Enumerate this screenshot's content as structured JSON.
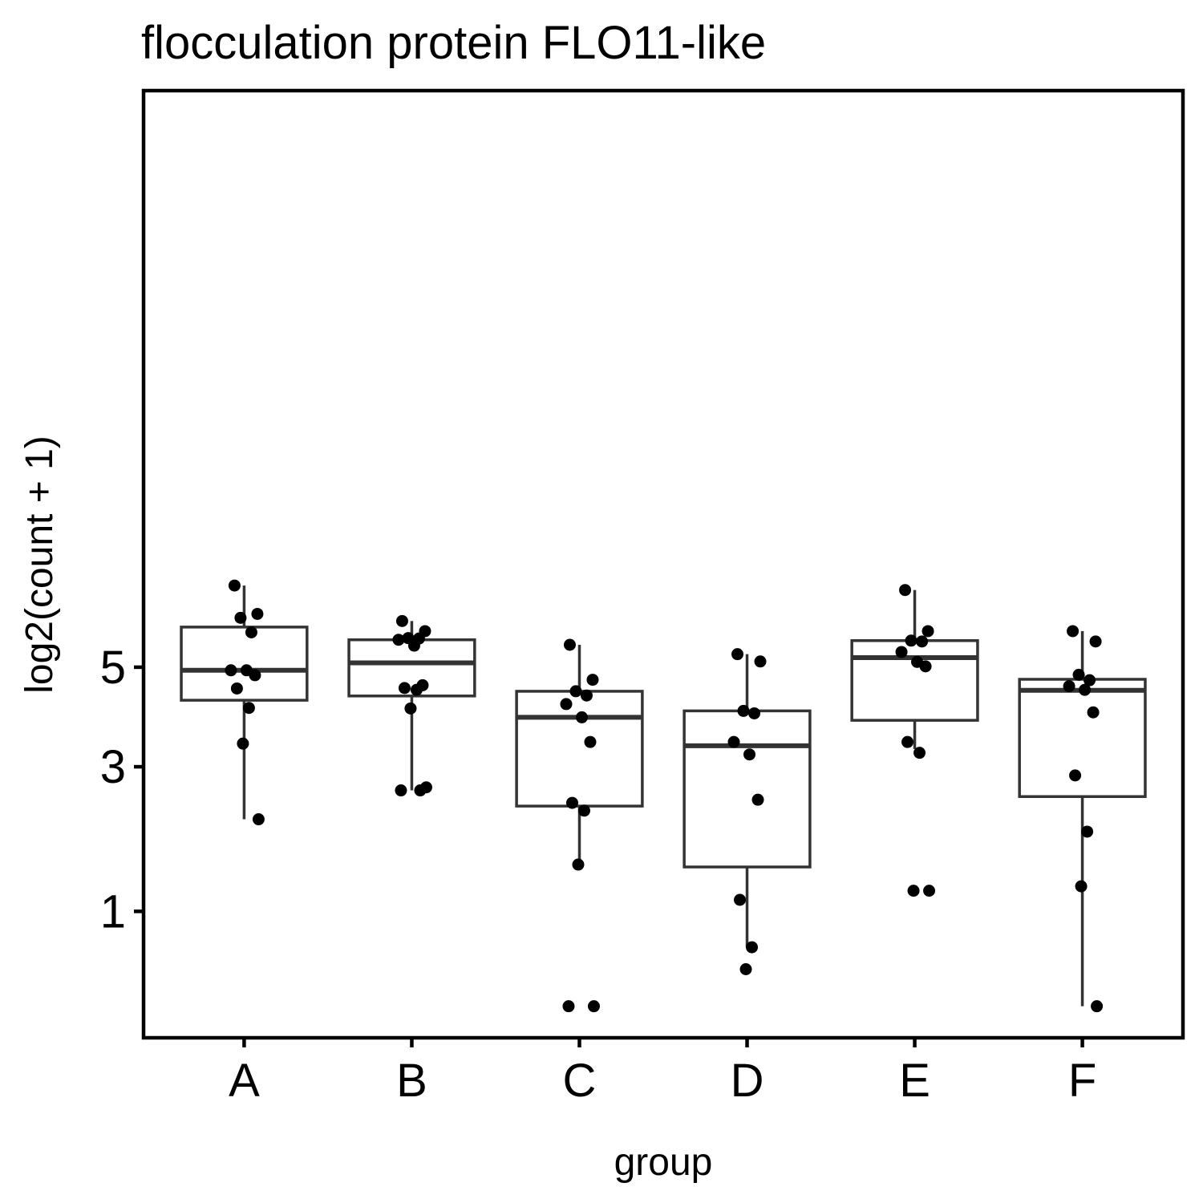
{
  "chart_data": {
    "type": "boxplot",
    "title": "flocculation protein FLO11-like",
    "xlabel": "group",
    "ylabel": "log2(count + 1)",
    "y_scale": "sqrt",
    "y_ticks": [
      1,
      3,
      5
    ],
    "y_tick_labels": [
      "1",
      "3",
      "5"
    ],
    "ylim": [
      0.2,
      7.1
    ],
    "grid": false,
    "categories": [
      "A",
      "B",
      "C",
      "D",
      "E",
      "F"
    ],
    "boxes": [
      {
        "group": "A",
        "whisker_low": 2.15,
        "q1": 4.28,
        "median": 4.93,
        "q3": 5.95,
        "whisker_high": 7.02
      },
      {
        "group": "B",
        "whisker_low": 2.6,
        "q1": 4.37,
        "median": 5.1,
        "q3": 5.64,
        "whisker_high": 6.1
      },
      {
        "group": "C",
        "whisker_low": 1.53,
        "q1": 2.35,
        "median": 3.93,
        "q3": 4.47,
        "whisker_high": 5.52
      },
      {
        "group": "D",
        "whisker_low": 0.67,
        "q1": 1.5,
        "median": 3.38,
        "q3": 4.06,
        "whisker_high": 5.3
      },
      {
        "group": "E",
        "whisker_low": 3.32,
        "q1": 3.87,
        "median": 5.22,
        "q3": 5.62,
        "whisker_high": 6.9
      },
      {
        "group": "F",
        "whisker_low": 0.27,
        "q1": 2.5,
        "median": 4.49,
        "q3": 4.73,
        "whisker_high": 5.85
      }
    ],
    "points": [
      {
        "group": "A",
        "values": [
          7.02,
          6.28,
          6.18,
          5.82,
          4.93,
          4.93,
          4.82,
          4.53,
          4.12,
          3.42,
          2.15
        ]
      },
      {
        "group": "B",
        "values": [
          6.1,
          5.85,
          5.68,
          5.67,
          5.64,
          5.5,
          4.6,
          4.54,
          4.5,
          4.11,
          2.65,
          2.6,
          2.6
        ]
      },
      {
        "group": "C",
        "values": [
          5.52,
          4.72,
          4.47,
          4.38,
          4.2,
          3.93,
          3.45,
          2.4,
          2.28,
          1.53,
          0.27,
          0.27
        ]
      },
      {
        "group": "D",
        "values": [
          5.3,
          5.13,
          4.06,
          4.01,
          3.45,
          3.22,
          2.45,
          1.12,
          0.67,
          0.5
        ]
      },
      {
        "group": "E",
        "values": [
          6.9,
          5.85,
          5.62,
          5.6,
          5.35,
          5.12,
          5.02,
          3.45,
          3.25,
          1.22,
          1.22
        ]
      },
      {
        "group": "F",
        "values": [
          5.85,
          5.6,
          4.83,
          4.71,
          4.58,
          4.5,
          4.03,
          2.85,
          1.97,
          1.27,
          0.27
        ]
      }
    ],
    "legend": null
  }
}
